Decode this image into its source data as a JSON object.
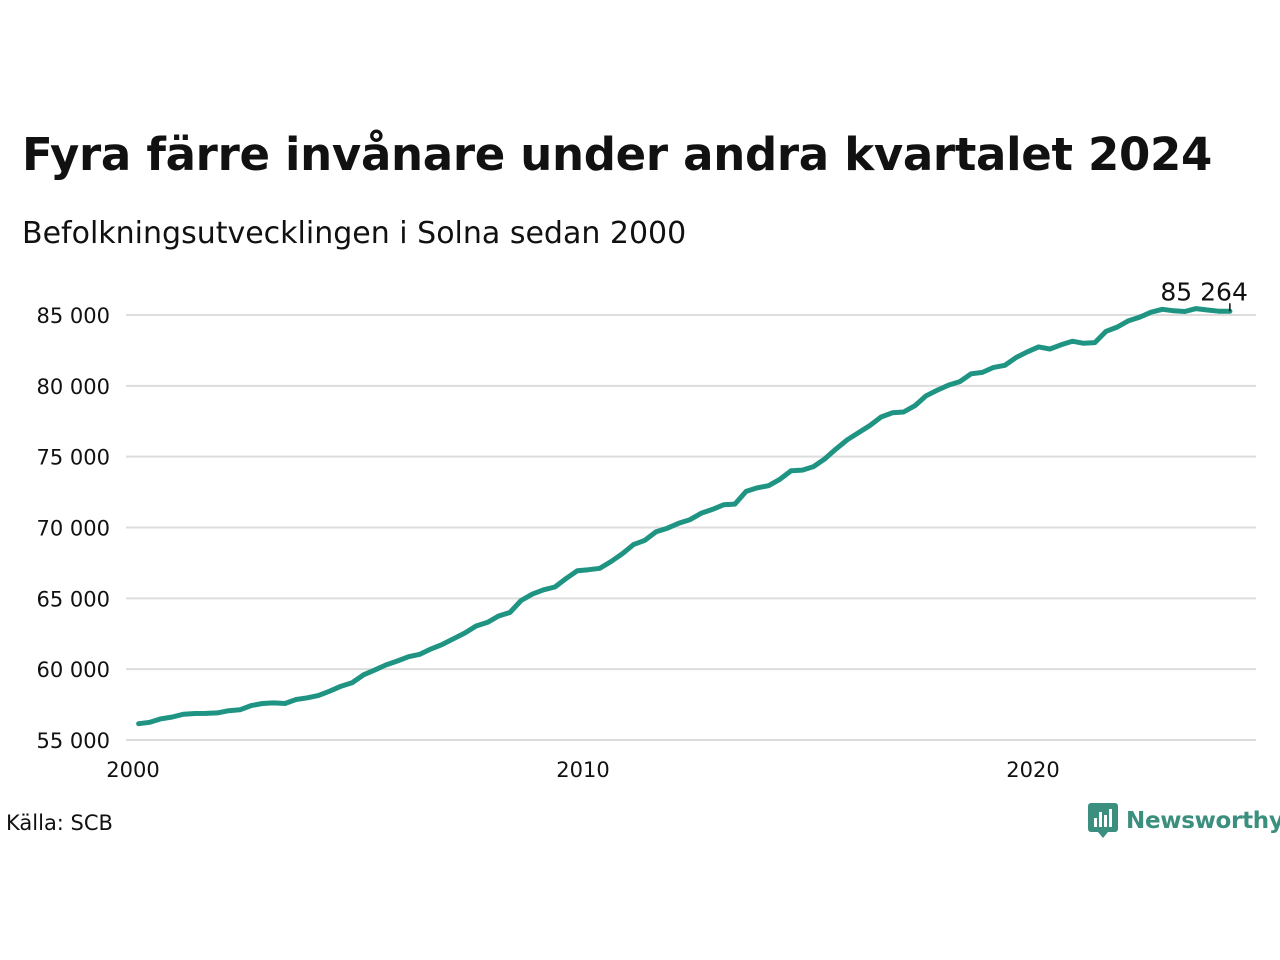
{
  "header": {
    "title": "Fyra färre invånare under andra kvartalet 2024",
    "subtitle": "Befolkningsutvecklingen i Solna sedan 2000"
  },
  "footer": {
    "source": "Källa: SCB",
    "brand": "Newsworthy"
  },
  "colors": {
    "line": "#1f9483",
    "grid": "#dddddd",
    "text": "#111111",
    "brand": "#3b8f7e"
  },
  "chart_data": {
    "type": "line",
    "title": "Fyra färre invånare under andra kvartalet 2024",
    "subtitle": "Befolkningsutvecklingen i Solna sedan 2000",
    "xlabel": "",
    "ylabel": "",
    "xlim": [
      2000,
      2025
    ],
    "ylim": [
      55000,
      86000
    ],
    "x_ticks": [
      {
        "value": 2000,
        "label": "2000"
      },
      {
        "value": 2010,
        "label": "2010"
      },
      {
        "value": 2020,
        "label": "2020"
      }
    ],
    "y_ticks": [
      {
        "value": 55000,
        "label": "55 000"
      },
      {
        "value": 60000,
        "label": "60 000"
      },
      {
        "value": 65000,
        "label": "65 000"
      },
      {
        "value": 70000,
        "label": "70 000"
      },
      {
        "value": 75000,
        "label": "75 000"
      },
      {
        "value": 80000,
        "label": "80 000"
      },
      {
        "value": 85000,
        "label": "85 000"
      }
    ],
    "grid": true,
    "legend": "none",
    "end_label": "85 264",
    "series": [
      {
        "x": [
          2000.125,
          2000.375,
          2000.625,
          2000.875,
          2001.125,
          2001.375,
          2001.625,
          2001.875,
          2002.125,
          2002.375,
          2002.625,
          2002.875,
          2003.125,
          2003.375,
          2003.625,
          2003.875,
          2004.125,
          2004.375,
          2004.625,
          2004.875,
          2005.125,
          2005.375,
          2005.625,
          2005.875,
          2006.125,
          2006.375,
          2006.625,
          2006.875,
          2007.125,
          2007.375,
          2007.625,
          2007.875,
          2008.125,
          2008.375,
          2008.625,
          2008.875,
          2009.125,
          2009.375,
          2009.625,
          2009.875,
          2010.125,
          2010.375,
          2010.625,
          2010.875,
          2011.125,
          2011.375,
          2011.625,
          2011.875,
          2012.125,
          2012.375,
          2012.625,
          2012.875,
          2013.125,
          2013.375,
          2013.625,
          2013.875,
          2014.125,
          2014.375,
          2014.625,
          2014.875,
          2015.125,
          2015.375,
          2015.625,
          2015.875,
          2016.125,
          2016.375,
          2016.625,
          2016.875,
          2017.125,
          2017.375,
          2017.625,
          2017.875,
          2018.125,
          2018.375,
          2018.625,
          2018.875,
          2019.125,
          2019.375,
          2019.625,
          2019.875,
          2020.125,
          2020.375,
          2020.625,
          2020.875,
          2021.125,
          2021.375,
          2021.625,
          2021.875,
          2022.125,
          2022.375,
          2022.625,
          2022.875,
          2023.125,
          2023.375,
          2023.625,
          2023.875,
          2024.125,
          2024.375
        ],
        "values": [
          56150,
          56250,
          56500,
          56620,
          56820,
          56870,
          56880,
          56910,
          57070,
          57130,
          57430,
          57580,
          57620,
          57580,
          57860,
          57980,
          58150,
          58450,
          58800,
          59050,
          59600,
          59950,
          60300,
          60580,
          60880,
          61050,
          61430,
          61750,
          62150,
          62550,
          63050,
          63300,
          63750,
          64000,
          64850,
          65300,
          65600,
          65800,
          66400,
          66950,
          67020,
          67120,
          67600,
          68150,
          68800,
          69100,
          69700,
          69950,
          70300,
          70550,
          71000,
          71280,
          71600,
          71650,
          72550,
          72800,
          72950,
          73400,
          74000,
          74050,
          74300,
          74850,
          75550,
          76200,
          76700,
          77200,
          77800,
          78100,
          78150,
          78600,
          79300,
          79700,
          80050,
          80300,
          80850,
          80950,
          81300,
          81450,
          82000,
          82400,
          82750,
          82600,
          82900,
          83150,
          83000,
          83050,
          83850,
          84150,
          84600,
          84850,
          85200,
          85400,
          85300,
          85250,
          85450,
          85350,
          85268,
          85264
        ]
      }
    ]
  }
}
